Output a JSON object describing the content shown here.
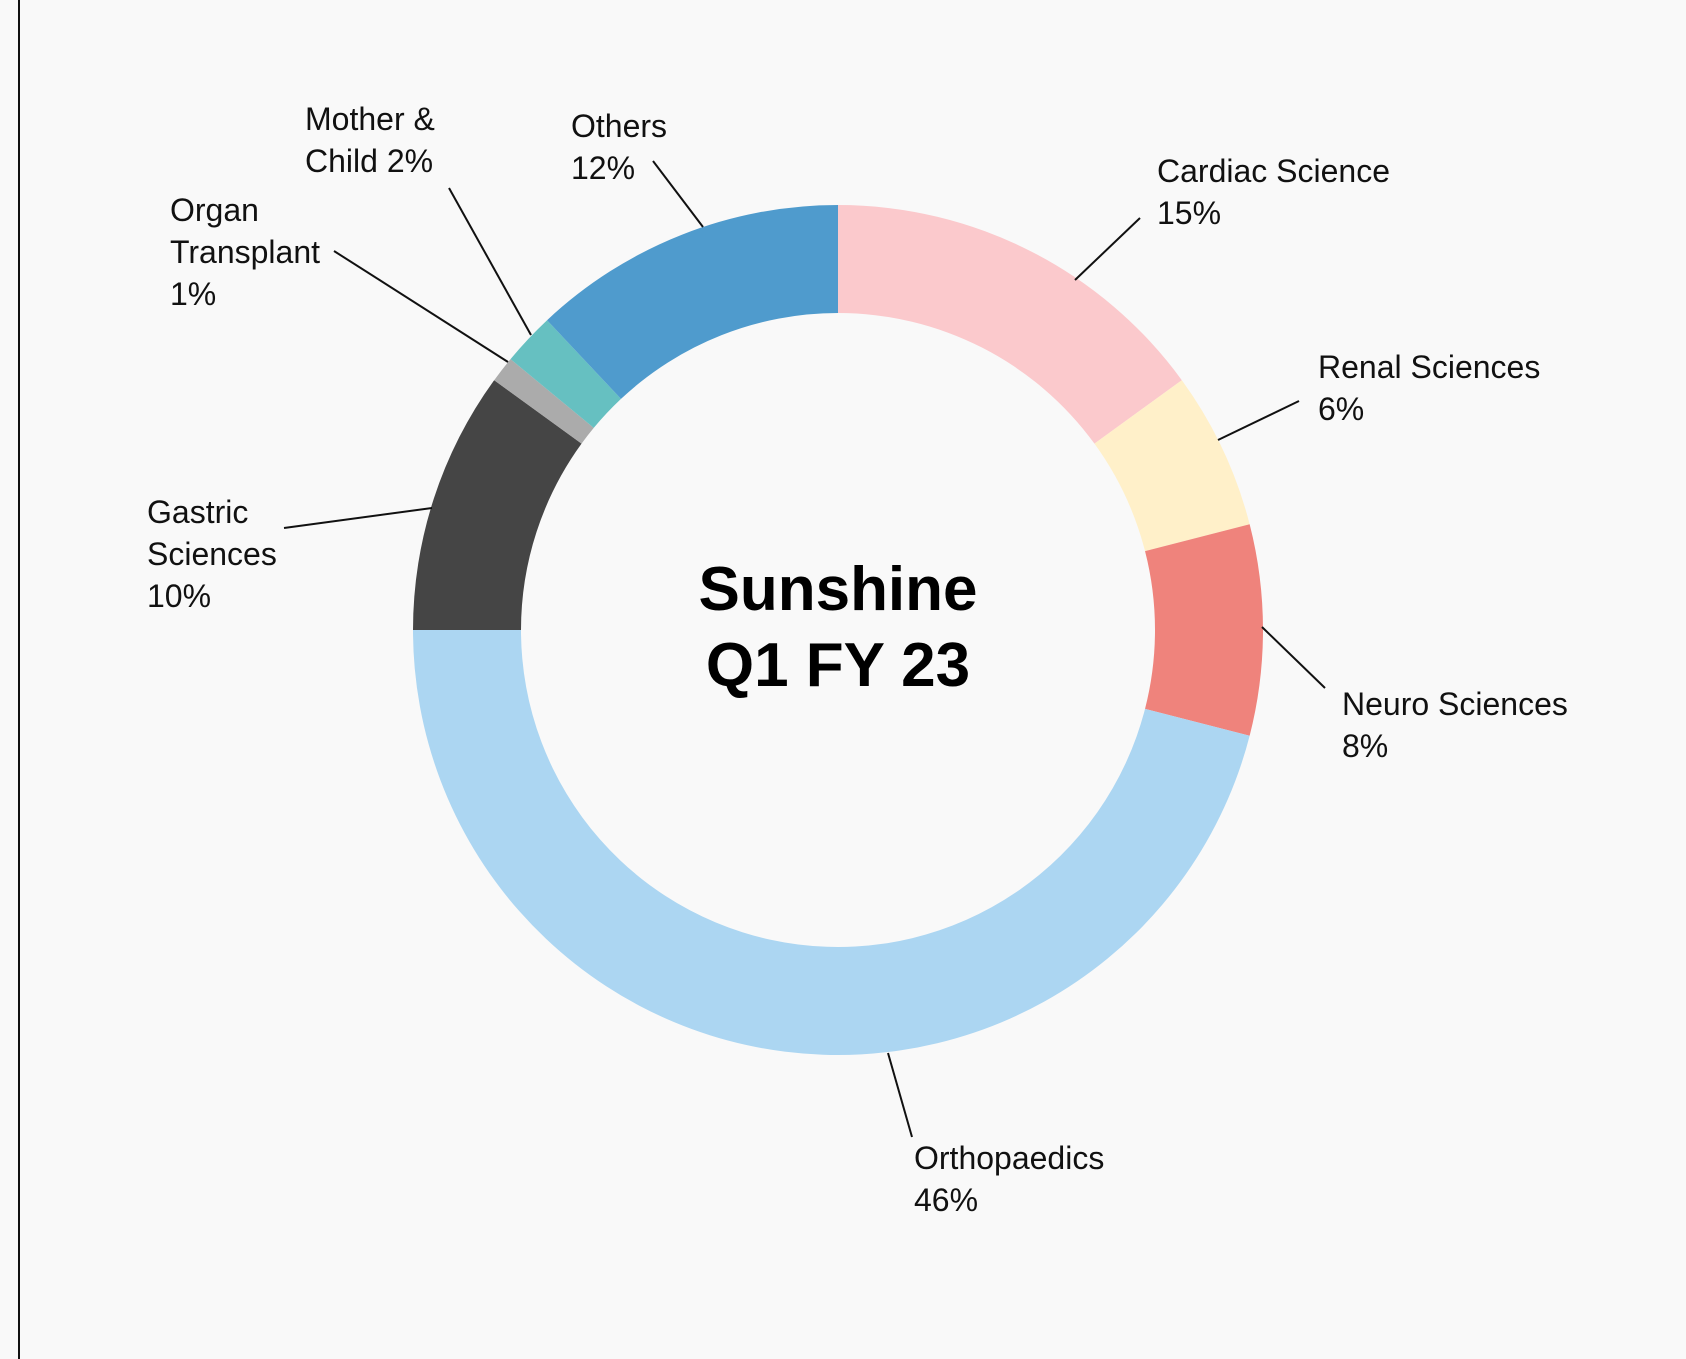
{
  "chart_data": {
    "type": "donut",
    "title": "Sunshine Q1 FY 23",
    "categories": [
      "Cardiac Science",
      "Renal Sciences",
      "Neuro Sciences",
      "Orthopaedics",
      "Gastric Sciences",
      "Organ Transplant",
      "Mother & Child",
      "Others"
    ],
    "values": [
      15,
      6,
      8,
      46,
      10,
      1,
      2,
      12
    ],
    "value_labels": [
      "15%",
      "6%",
      "8%",
      "46%",
      "10%",
      "1%",
      "2%",
      "12%"
    ],
    "colors": [
      "#fbc9cc",
      "#fff0c9",
      "#ef837c",
      "#acd6f2",
      "#454545",
      "#ababab",
      "#66c0c1",
      "#4f9bcd"
    ]
  }
}
